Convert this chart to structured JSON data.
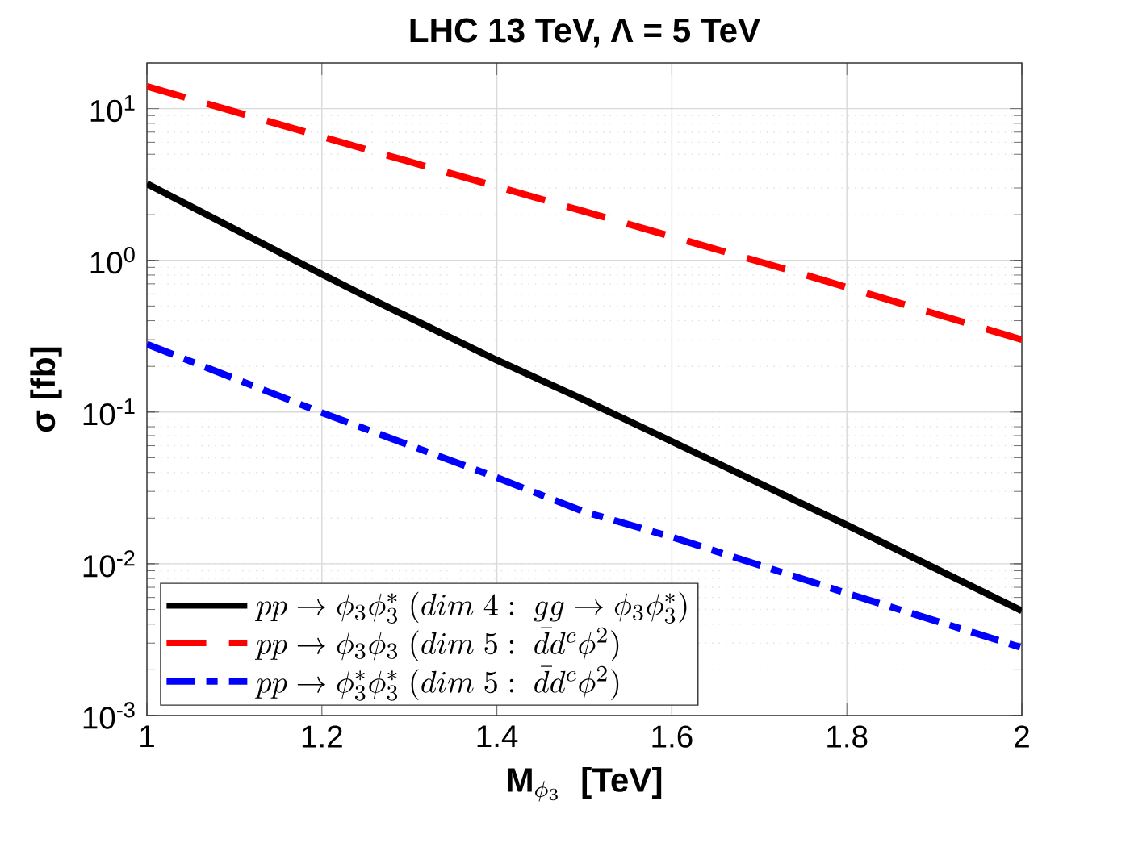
{
  "chart_data": {
    "type": "line",
    "title": "LHC 13 TeV, Λ = 5 TeV",
    "xlabel": "\\mathbf{M}_{\\phi_3}\\;\\;\\textbf{[TeV]}",
    "ylabel": "σ [fb]",
    "log": "y",
    "grid": true,
    "legend": "bottom left",
    "xlim": [
      1,
      2
    ],
    "xticks": [
      1,
      1.2,
      1.4,
      1.6,
      1.8,
      2
    ],
    "ylim": [
      0.001,
      20
    ],
    "yticks": [
      {
        "value": 0.001,
        "label": "10$^{-3}$"
      },
      {
        "value": 0.01,
        "label": "10$^{-2}$"
      },
      {
        "value": 0.1,
        "label": "10$^{-1}$"
      },
      {
        "value": 1,
        "label": "10$^{0}$"
      },
      {
        "value": 10,
        "label": "10$^{1}$"
      }
    ],
    "series": [
      {
        "name": "pp \\rightarrow \\phi_3\\phi_3^*\\ (dim\\ 4:\\ gg \\rightarrow \\phi_3\\phi_3^*)",
        "color": "#000000",
        "line_style": "solid",
        "x": [
          1,
          1.2,
          1.25,
          1.4,
          1.5,
          1.6,
          1.8,
          2
        ],
        "values": [
          3.2,
          0.81,
          0.58,
          0.22,
          0.12,
          0.064,
          0.018,
          0.0049
        ]
      },
      {
        "name": "pp \\rightarrow \\phi_3\\phi_3\\ (dim\\ 5:\\ \\bar{d}d^c\\phi^2)",
        "color": "#ff0000",
        "line_style": "dashed",
        "x": [
          1,
          1.25,
          1.5,
          1.75,
          2
        ],
        "values": [
          14,
          5.4,
          2.1,
          0.81,
          0.3
        ]
      },
      {
        "name": "pp \\rightarrow \\phi_3^*\\phi_3^*\\ (dim\\ 5:\\ \\bar{d}d^c\\phi^2)",
        "color": "#0000ff",
        "line_style": "dashdot",
        "x": [
          1,
          1.2,
          1.4,
          1.5,
          1.6,
          1.8,
          2
        ],
        "values": [
          0.28,
          0.099,
          0.037,
          0.022,
          0.015,
          0.0064,
          0.0028
        ]
      }
    ]
  }
}
